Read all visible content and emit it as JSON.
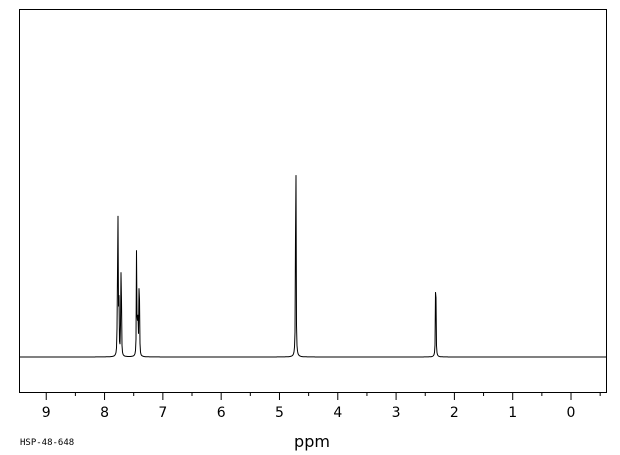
{
  "chart_data": {
    "type": "line",
    "title": "",
    "xlabel": "ppm",
    "ylabel": "",
    "xlim": [
      9.45,
      -0.6
    ],
    "ylim": [
      -0.1,
      1.0
    ],
    "x_reversed": true,
    "grid": false,
    "legend": "none",
    "line_color": "#000000",
    "frame_color": "#000000",
    "ticks_major": [
      9,
      8,
      7,
      6,
      5,
      4,
      3,
      2,
      1,
      0
    ],
    "tick_labels": [
      "9",
      "8",
      "7",
      "6",
      "5",
      "4",
      "3",
      "2",
      "1",
      "0"
    ],
    "ticks_minor": [
      9.5,
      8.5,
      7.5,
      6.5,
      5.5,
      4.5,
      3.5,
      2.5,
      1.5,
      0.5,
      -0.5
    ],
    "spectrum_id": "HSP-48-648",
    "peaks": [
      {
        "ppm": 7.78,
        "height": 0.22
      },
      {
        "ppm": 7.77,
        "height": 0.41
      },
      {
        "ppm": 7.755,
        "height": 0.25
      },
      {
        "ppm": 7.72,
        "height": 0.3
      },
      {
        "ppm": 7.71,
        "height": 0.14
      },
      {
        "ppm": 7.45,
        "height": 0.41
      },
      {
        "ppm": 7.43,
        "height": 0.2
      },
      {
        "ppm": 7.41,
        "height": 0.19
      },
      {
        "ppm": 7.4,
        "height": 0.15
      },
      {
        "ppm": 4.72,
        "height": 1.0
      },
      {
        "ppm": 2.32,
        "height": 0.42
      }
    ]
  }
}
